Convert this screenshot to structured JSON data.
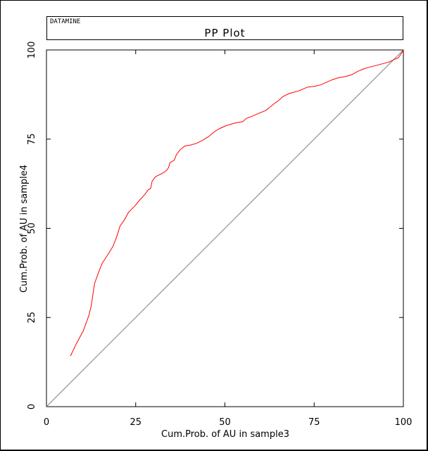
{
  "header": {
    "brand": "DATAMINE",
    "title": "PP Plot"
  },
  "chart_data": {
    "type": "line",
    "title": "PP Plot",
    "xlabel": "Cum.Prob. of AU in sample3",
    "ylabel": "Cum.Prob. of AU in sample4",
    "xlim": [
      0,
      100
    ],
    "ylim": [
      0,
      100
    ],
    "x_ticks": [
      0,
      25,
      50,
      75,
      100
    ],
    "y_ticks": [
      0,
      25,
      50,
      75,
      100
    ],
    "x_tick_labels": [
      "0",
      "25",
      "50",
      "75",
      "100"
    ],
    "y_tick_labels": [
      "0",
      "25",
      "50",
      "75",
      "100"
    ],
    "grid": false,
    "legend": "none",
    "series": [
      {
        "color": "#ff0000",
        "points": [
          [
            6.7,
            14.2
          ],
          [
            8.5,
            17.9
          ],
          [
            10.3,
            21.2
          ],
          [
            11.9,
            25.6
          ],
          [
            12.5,
            28.1
          ],
          [
            13.5,
            34.6
          ],
          [
            14.8,
            38.1
          ],
          [
            15.6,
            40.2
          ],
          [
            17.0,
            42.3
          ],
          [
            18.6,
            44.9
          ],
          [
            19.6,
            47.4
          ],
          [
            20.6,
            50.6
          ],
          [
            21.8,
            52.3
          ],
          [
            23.0,
            54.5
          ],
          [
            24.8,
            56.3
          ],
          [
            26.0,
            57.8
          ],
          [
            27.6,
            59.5
          ],
          [
            28.4,
            60.7
          ],
          [
            29.2,
            61.2
          ],
          [
            29.6,
            63.2
          ],
          [
            30.6,
            64.5
          ],
          [
            32.6,
            65.5
          ],
          [
            33.6,
            66.2
          ],
          [
            34.2,
            67.0
          ],
          [
            34.6,
            68.4
          ],
          [
            35.8,
            69.1
          ],
          [
            36.4,
            70.6
          ],
          [
            37.4,
            72.0
          ],
          [
            38.8,
            73.1
          ],
          [
            40.2,
            73.3
          ],
          [
            42.0,
            73.8
          ],
          [
            43.6,
            74.6
          ],
          [
            45.4,
            75.7
          ],
          [
            46.8,
            76.9
          ],
          [
            48.6,
            78.0
          ],
          [
            50.4,
            78.8
          ],
          [
            52.8,
            79.5
          ],
          [
            55.0,
            79.9
          ],
          [
            56.0,
            80.8
          ],
          [
            57.8,
            81.5
          ],
          [
            59.4,
            82.2
          ],
          [
            61.4,
            83.0
          ],
          [
            62.4,
            83.8
          ],
          [
            63.6,
            84.8
          ],
          [
            65.0,
            85.8
          ],
          [
            66.2,
            86.9
          ],
          [
            68.0,
            87.8
          ],
          [
            70.6,
            88.5
          ],
          [
            72.0,
            89.1
          ],
          [
            73.2,
            89.6
          ],
          [
            75.0,
            89.8
          ],
          [
            76.8,
            90.2
          ],
          [
            78.6,
            91.0
          ],
          [
            80.2,
            91.7
          ],
          [
            81.8,
            92.2
          ],
          [
            84.0,
            92.6
          ],
          [
            85.6,
            93.1
          ],
          [
            87.0,
            93.9
          ],
          [
            88.6,
            94.6
          ],
          [
            90.2,
            95.1
          ],
          [
            92.2,
            95.6
          ],
          [
            94.0,
            96.1
          ],
          [
            96.0,
            96.6
          ],
          [
            97.4,
            97.3
          ],
          [
            98.6,
            97.8
          ],
          [
            99.4,
            99.0
          ],
          [
            100.0,
            100.0
          ]
        ]
      },
      {
        "color": "#808080",
        "points": [
          [
            0,
            0
          ],
          [
            100,
            100
          ]
        ]
      }
    ]
  }
}
